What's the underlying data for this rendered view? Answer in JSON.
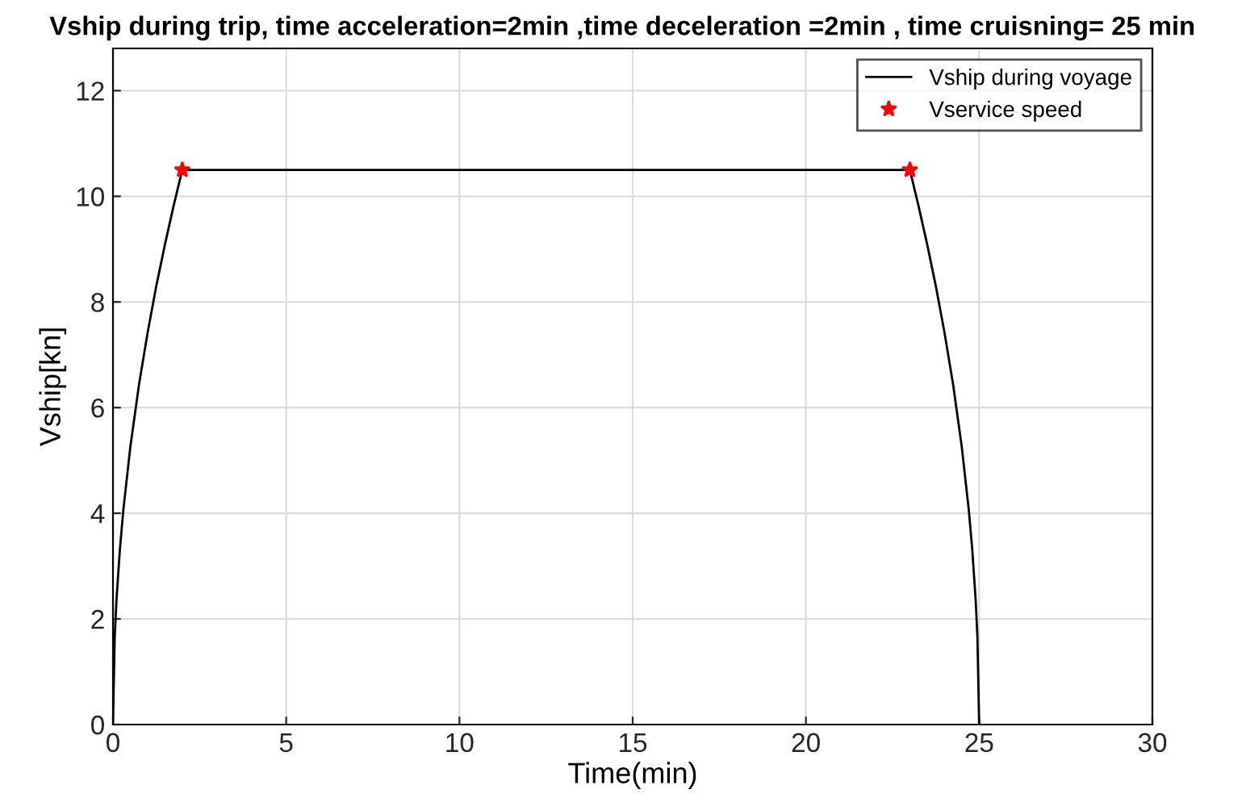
{
  "chart_data": {
    "type": "line",
    "title": "Vship during trip, time acceleration=2min ,time deceleration =2min , time cruisning= 25 min",
    "xlabel": "Time(min)",
    "ylabel": "Vship[kn]",
    "series": [
      {
        "name": "Vship during voyage",
        "color": "#000000",
        "marker": "none",
        "x": [
          0,
          0.05,
          0.1,
          0.2,
          0.3,
          0.5,
          0.75,
          1,
          1.25,
          1.5,
          1.75,
          2,
          23,
          23.25,
          23.5,
          23.75,
          24,
          24.25,
          24.5,
          24.7,
          24.8,
          24.9,
          24.95,
          25
        ],
        "values": [
          0,
          1.66,
          2.35,
          3.32,
          4.07,
          5.25,
          6.43,
          7.42,
          8.3,
          9.09,
          9.82,
          10.5,
          10.5,
          9.82,
          9.09,
          8.3,
          7.42,
          6.43,
          5.25,
          4.07,
          3.32,
          2.35,
          1.66,
          0
        ]
      },
      {
        "name": "Vservice speed",
        "type": "scatter",
        "color": "#ff0000",
        "marker": "star",
        "x": [
          2,
          23
        ],
        "values": [
          10.5,
          10.5
        ]
      }
    ],
    "xlim": [
      0,
      30
    ],
    "xticks": [
      0,
      5,
      10,
      15,
      20,
      25,
      30
    ],
    "ylim": [
      0,
      12.8
    ],
    "yticks": [
      0,
      2,
      4,
      6,
      8,
      10,
      12
    ],
    "grid": true,
    "legend": "top right",
    "line_style": "solid"
  }
}
